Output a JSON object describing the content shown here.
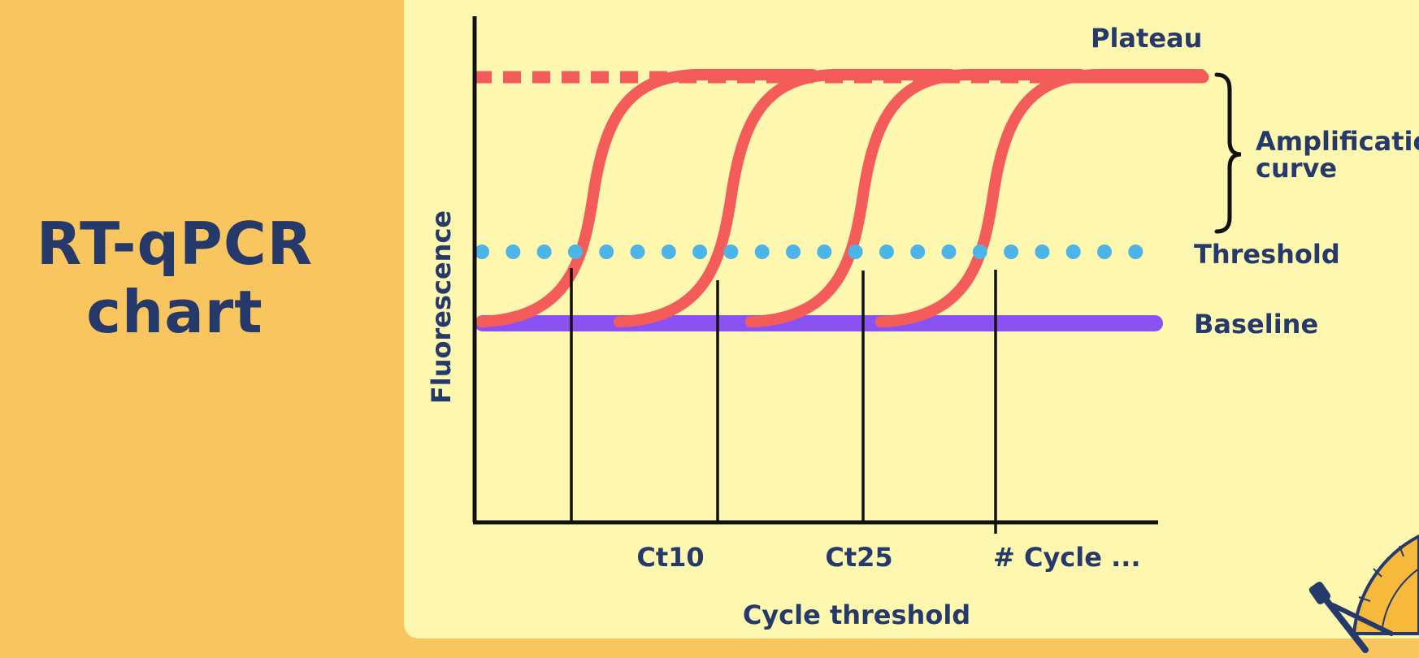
{
  "title": {
    "line1": "RT-qPCR",
    "line2": "chart"
  },
  "diagram": {
    "y_axis_label": "Fluorescence",
    "x_axis_label": "Cycle threshold",
    "x_ticks": [
      "Ct10",
      "Ct25",
      "# Cycle ..."
    ],
    "annotations": {
      "plateau": "Plateau",
      "amplification_line1": "Amplification",
      "amplification_line2": "curve",
      "threshold": "Threshold",
      "baseline": "Baseline"
    },
    "curve_count": 4
  },
  "colors": {
    "background": "#f9c55f",
    "panel": "#fdf7b0",
    "text": "#253a6a",
    "curve": "#f45c5a",
    "threshold": "#4bb4ea",
    "baseline": "#8a52f2",
    "axis": "#111111"
  },
  "icons": [
    "protractor-icon",
    "compass-icon"
  ]
}
